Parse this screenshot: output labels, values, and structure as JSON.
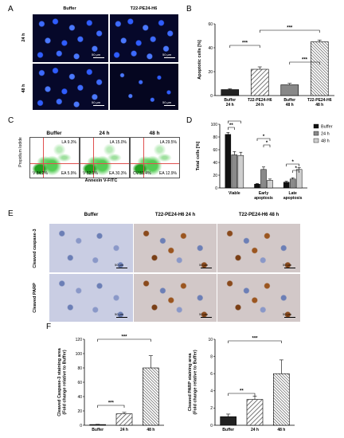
{
  "panels": {
    "A": {
      "label": "A",
      "col_headers": [
        "Buffer",
        "T22-PE24-H6"
      ],
      "row_labels": [
        "24 h",
        "48 h"
      ],
      "scale_bar": "50 µm"
    },
    "B": {
      "label": "B"
    },
    "C": {
      "label": "C",
      "titles": [
        "Buffer",
        "24 h",
        "48 h"
      ],
      "ylabel": "Propidium Iodide",
      "xlabel": "Annexin V-FITC",
      "quadrants": [
        {
          "LA": "LA 9.3%",
          "V": "V 84.2%",
          "EA": "EA 5.9%"
        },
        {
          "LA": "LA 15.0%",
          "V": "V 52.1%",
          "EA": "EA 30.3%"
        },
        {
          "LA": "LA 29.5%",
          "V": "CV 51.4%",
          "EA": "EA 12.9%"
        }
      ]
    },
    "D": {
      "label": "D"
    },
    "E": {
      "label": "E",
      "col_headers": [
        "Buffer",
        "T22-PE24-H6 24 h",
        "T22-PE24-H6 48 h"
      ],
      "row_labels": [
        "Cleaved caspase-3",
        "Cleaved PARP"
      ],
      "scale_bar": "50 µm"
    },
    "F": {
      "label": "F"
    }
  },
  "chart_data": [
    {
      "panel": "B",
      "type": "bar",
      "categories": [
        "Buffer 24 h",
        "T22-PE24-H6 24 h",
        "Buffer 48 h",
        "T22-PE24-H6 48 h"
      ],
      "tick_labels": [
        [
          "Buffer",
          "24 h"
        ],
        [
          "T22-PE24-H6",
          "24 h"
        ],
        [
          "Buffer",
          "48 h"
        ],
        [
          "T22-PE24-H6",
          "48 h"
        ]
      ],
      "values": [
        5,
        22,
        9,
        45
      ],
      "errors": [
        0.7,
        2,
        1.2,
        1.5
      ],
      "fills": [
        "#222222",
        "hatch",
        "#888888",
        "hatch-dense"
      ],
      "ylabel": "Apoptotic cells [%]",
      "ylim": [
        0,
        60
      ],
      "yticks": [
        0,
        20,
        40,
        60
      ],
      "significance": [
        {
          "from": 0,
          "to": 1,
          "label": "***"
        },
        {
          "from": 2,
          "to": 3,
          "label": "***"
        },
        {
          "from": 1,
          "to": 3,
          "label": "***"
        }
      ]
    },
    {
      "panel": "D",
      "type": "bar",
      "categories": [
        [
          "Viable"
        ],
        [
          "Early",
          "apoptosis"
        ],
        [
          "Late",
          "apoptosis"
        ]
      ],
      "series": [
        {
          "name": "Buffer",
          "values": [
            84,
            6,
            9
          ],
          "errors": [
            3,
            1,
            1.5
          ],
          "color": "#111111"
        },
        {
          "name": "24 h",
          "values": [
            52,
            29,
            14
          ],
          "errors": [
            5,
            4,
            2
          ],
          "color": "#8a8a8a"
        },
        {
          "name": "48 h",
          "values": [
            51,
            12,
            29
          ],
          "errors": [
            5,
            2,
            3
          ],
          "color": "#cfcfcf"
        }
      ],
      "ylabel": "Total cells [%]",
      "ylim": [
        0,
        100
      ],
      "yticks": [
        0,
        20,
        40,
        60,
        80,
        100
      ],
      "legend": "right",
      "significance": [
        {
          "group": 0,
          "from": 0,
          "to": 2,
          "label": "***"
        },
        {
          "group": 0,
          "from": 0,
          "to": 1,
          "label": "**"
        },
        {
          "group": 1,
          "from": 0,
          "to": 2,
          "label": "*"
        },
        {
          "group": 1,
          "from": 1,
          "to": 2,
          "label": "*"
        },
        {
          "group": 2,
          "from": 0,
          "to": 2,
          "label": "*"
        },
        {
          "group": 2,
          "from": 1,
          "to": 2,
          "label": "*"
        }
      ]
    },
    {
      "panel": "F-left",
      "type": "bar",
      "categories": [
        "Buffer",
        "24 h",
        "48 h"
      ],
      "values": [
        1,
        16,
        80
      ],
      "errors": [
        0.3,
        2,
        17
      ],
      "fills": [
        "#222222",
        "hatch",
        "hatch-dense"
      ],
      "ylabel": [
        "Cleaved Caspase-3 staining area",
        "(Fold change relative to Buffer)"
      ],
      "ylim": [
        0,
        120
      ],
      "yticks": [
        0,
        20,
        40,
        60,
        80,
        100,
        120
      ],
      "significance": [
        {
          "from": 0,
          "to": 1,
          "label": "***"
        },
        {
          "from": 0,
          "to": 2,
          "label": "***"
        }
      ]
    },
    {
      "panel": "F-right",
      "type": "bar",
      "categories": [
        "Buffer",
        "24 h",
        "48 h"
      ],
      "values": [
        1,
        3,
        6
      ],
      "errors": [
        0.3,
        0.4,
        1.6
      ],
      "fills": [
        "#222222",
        "hatch",
        "hatch-dense"
      ],
      "ylabel": [
        "Cleaved PARP staining area",
        "(Fold change relative to Buffer)"
      ],
      "ylim": [
        0,
        10
      ],
      "yticks": [
        0,
        2,
        4,
        6,
        8,
        10
      ],
      "significance": [
        {
          "from": 0,
          "to": 1,
          "label": "**"
        },
        {
          "from": 0,
          "to": 2,
          "label": "***"
        }
      ]
    }
  ]
}
